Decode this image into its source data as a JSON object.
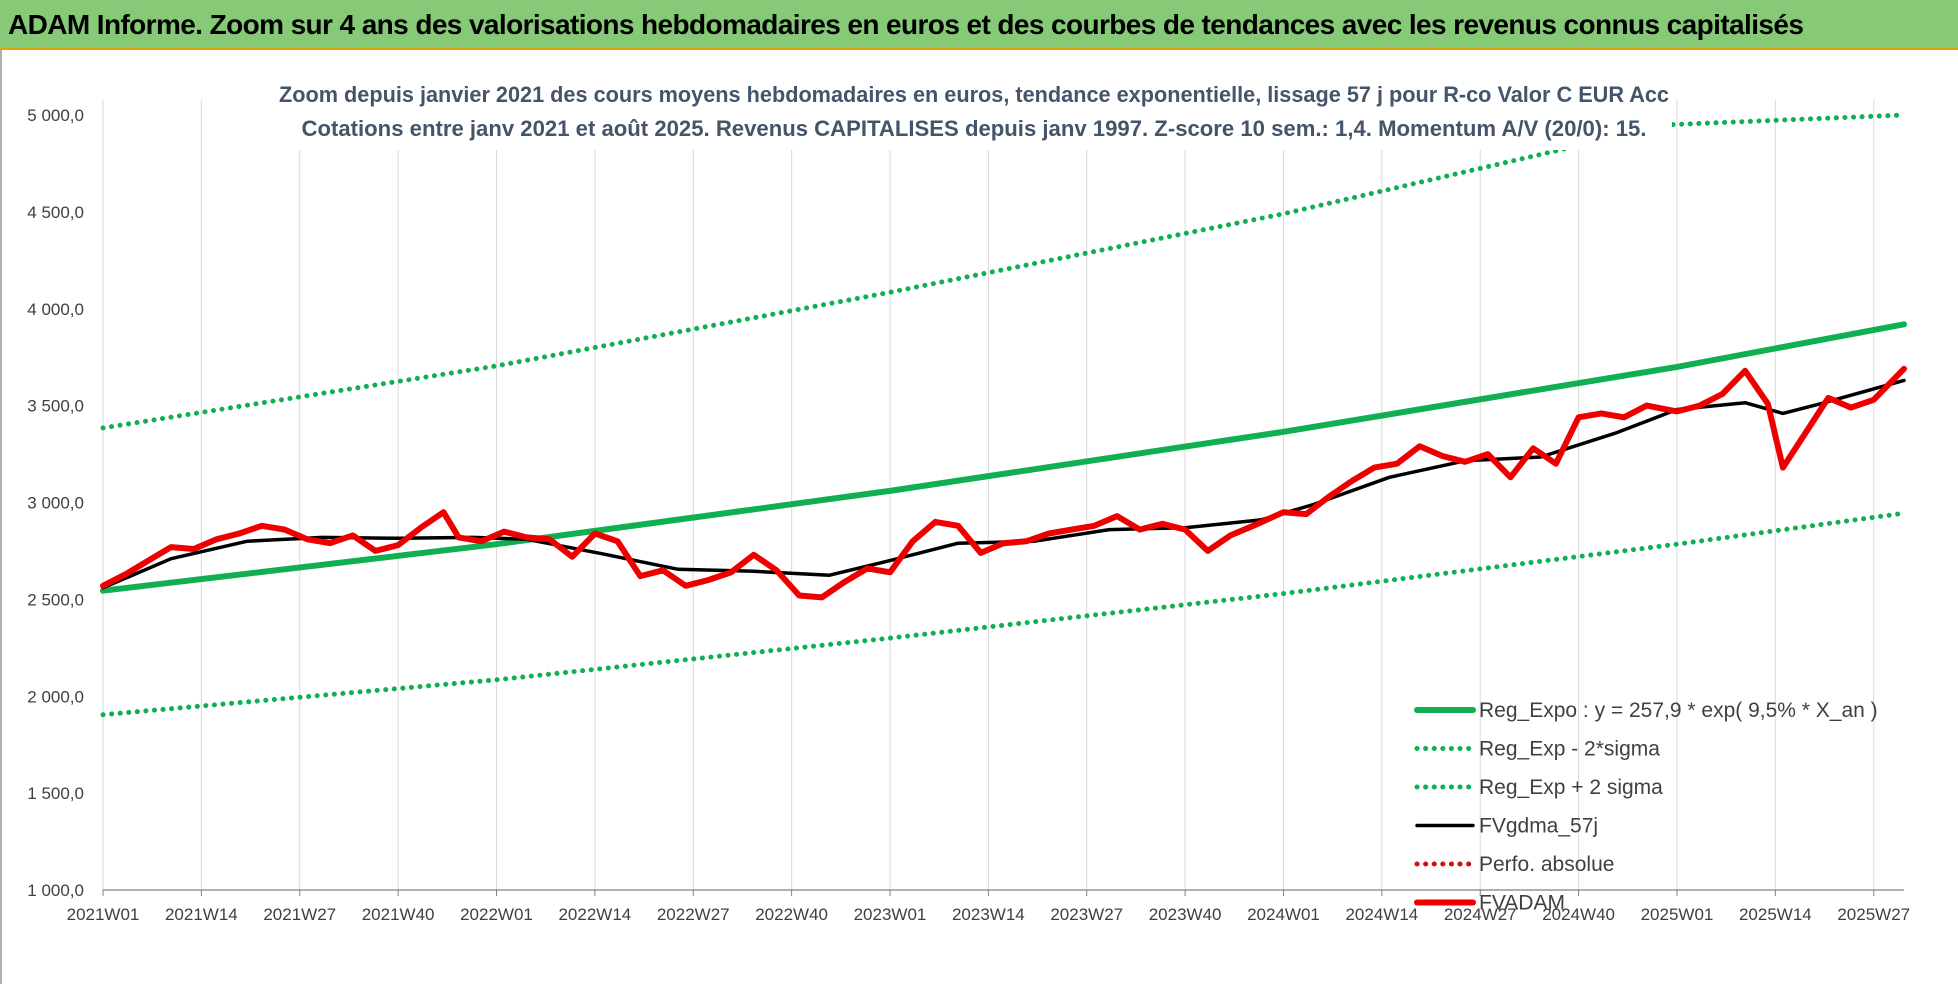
{
  "banner": {
    "title": "ADAM Informe. Zoom sur 4 ans des valorisations hebdomadaires en euros et des courbes de tendances avec les revenus connus capitalisés"
  },
  "colors": {
    "banner_bg": "#86c976",
    "regression": "#10b050",
    "bands": "#10b050",
    "moving_average": "#000000",
    "fund": "#ee0000",
    "perfo": "#d01010"
  },
  "chart_data": {
    "type": "line",
    "title": "Zoom depuis janvier 2021 des cours moyens hebdomadaires en euros, tendance exponentielle, lissage 57 j pour R-co Valor C EUR Acc",
    "subtitle": "Cotations entre janv 2021 et août 2025. Revenus CAPITALISES depuis janv 1997. Z-score 10 sem.: 1,4. Momentum A/V (20/0): 15.",
    "xlabel": "",
    "ylabel": "",
    "ylim": [
      1000,
      5000
    ],
    "y_ticks": [
      "1 000,0",
      "1 500,0",
      "2 000,0",
      "2 500,0",
      "3 000,0",
      "3 500,0",
      "4 000,0",
      "4 500,0",
      "5 000,0"
    ],
    "x_ticks": [
      "2021W01",
      "2021W14",
      "2021W27",
      "2021W40",
      "2022W01",
      "2022W14",
      "2022W27",
      "2022W40",
      "2023W01",
      "2023W14",
      "2023W27",
      "2023W40",
      "2024W01",
      "2024W14",
      "2024W27",
      "2024W40",
      "2025W01",
      "2025W14",
      "2025W27"
    ],
    "x_range": [
      "2021W01",
      "2025W31"
    ],
    "grid": "vertical",
    "legend_position": "bottom-right",
    "series": [
      {
        "name": "Reg_Expo : y = 257,9 * exp( 9,5% *  X_an )",
        "style": "solid-thick",
        "color": "#10b050",
        "x": [
          "2021W01",
          "2022W01",
          "2023W01",
          "2024W01",
          "2025W01",
          "2025W31"
        ],
        "values": [
          2545,
          2785,
          3060,
          3365,
          3700,
          3920
        ]
      },
      {
        "name": "Reg_Exp - 2*sigma",
        "style": "dotted",
        "color": "#10b050",
        "x": [
          "2021W01",
          "2022W01",
          "2023W01",
          "2024W01",
          "2025W01",
          "2025W31"
        ],
        "values": [
          1905,
          2085,
          2300,
          2530,
          2785,
          2945
        ]
      },
      {
        "name": "Reg_Exp + 2 sigma",
        "style": "dotted",
        "color": "#10b050",
        "x": [
          "2021W01",
          "2022W01",
          "2023W01",
          "2024W01",
          "2024W52",
          "2025W31"
        ],
        "values": [
          3385,
          3705,
          4085,
          4490,
          4950,
          5000
        ],
        "note": "capped at 5 000,0"
      },
      {
        "name": "FVgdma_57j",
        "style": "solid",
        "color": "#000000",
        "x": [
          "2021W01",
          "2021W10",
          "2021W20",
          "2021W30",
          "2021W40",
          "2021W50",
          "2022W05",
          "2022W15",
          "2022W25",
          "2022W35",
          "2022W45",
          "2023W01",
          "2023W10",
          "2023W20",
          "2023W30",
          "2023W40",
          "2023W50",
          "2024W05",
          "2024W15",
          "2024W25",
          "2024W35",
          "2024W45",
          "2025W01",
          "2025W10",
          "2025W15",
          "2025W20",
          "2025W31"
        ],
        "values": [
          2560,
          2710,
          2800,
          2820,
          2815,
          2820,
          2810,
          2735,
          2655,
          2645,
          2625,
          2700,
          2790,
          2800,
          2860,
          2870,
          2910,
          2990,
          3130,
          3215,
          3235,
          3360,
          3480,
          3515,
          3460,
          3510,
          3630
        ]
      },
      {
        "name": "Perfo. absolue",
        "style": "dotted",
        "color": "#d01010",
        "x": [],
        "values": []
      },
      {
        "name": "FVADAM",
        "style": "solid-thick",
        "color": "#ee0000",
        "x": [
          "2021W01",
          "2021W04",
          "2021W07",
          "2021W10",
          "2021W13",
          "2021W16",
          "2021W19",
          "2021W22",
          "2021W25",
          "2021W28",
          "2021W31",
          "2021W34",
          "2021W37",
          "2021W40",
          "2021W43",
          "2021W46",
          "2021W48",
          "2021W51",
          "2022W02",
          "2022W05",
          "2022W08",
          "2022W11",
          "2022W14",
          "2022W17",
          "2022W20",
          "2022W23",
          "2022W26",
          "2022W29",
          "2022W32",
          "2022W35",
          "2022W38",
          "2022W41",
          "2022W44",
          "2022W47",
          "2022W50",
          "2023W01",
          "2023W04",
          "2023W07",
          "2023W10",
          "2023W13",
          "2023W16",
          "2023W19",
          "2023W22",
          "2023W25",
          "2023W28",
          "2023W31",
          "2023W34",
          "2023W37",
          "2023W40",
          "2023W43",
          "2023W46",
          "2023W49",
          "2024W01",
          "2024W04",
          "2024W07",
          "2024W10",
          "2024W13",
          "2024W16",
          "2024W19",
          "2024W22",
          "2024W25",
          "2024W28",
          "2024W31",
          "2024W34",
          "2024W37",
          "2024W40",
          "2024W43",
          "2024W46",
          "2024W49",
          "2025W01",
          "2025W04",
          "2025W07",
          "2025W10",
          "2025W13",
          "2025W15",
          "2025W18",
          "2025W21",
          "2025W24",
          "2025W27",
          "2025W31"
        ],
        "values": [
          2570,
          2630,
          2700,
          2770,
          2760,
          2810,
          2840,
          2880,
          2860,
          2810,
          2790,
          2830,
          2750,
          2780,
          2870,
          2950,
          2820,
          2800,
          2850,
          2820,
          2810,
          2720,
          2840,
          2800,
          2620,
          2650,
          2570,
          2600,
          2640,
          2730,
          2650,
          2520,
          2510,
          2590,
          2660,
          2640,
          2800,
          2900,
          2880,
          2740,
          2790,
          2800,
          2840,
          2860,
          2880,
          2930,
          2860,
          2890,
          2860,
          2750,
          2830,
          2880,
          2950,
          2940,
          3030,
          3110,
          3180,
          3200,
          3290,
          3240,
          3210,
          3250,
          3130,
          3280,
          3200,
          3440,
          3460,
          3440,
          3500,
          3470,
          3500,
          3560,
          3680,
          3510,
          3180,
          3360,
          3540,
          3490,
          3530,
          3690
        ]
      }
    ]
  }
}
